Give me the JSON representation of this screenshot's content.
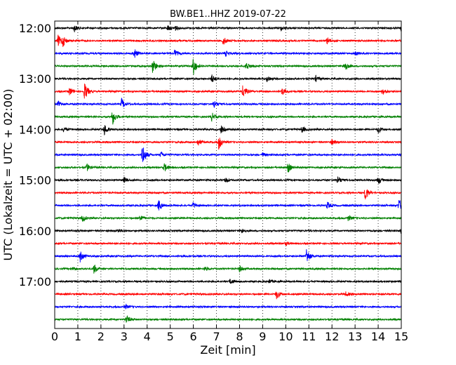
{
  "chart_data": {
    "type": "line",
    "title": "BW.BE1..HHZ 2019-07-22",
    "xlabel": "Zeit  [min]",
    "ylabel": "UTC (Lokalzeit = UTC + 02:00)",
    "xlim": [
      0,
      15
    ],
    "x_ticks": [
      "0",
      "1",
      "2",
      "3",
      "4",
      "5",
      "6",
      "7",
      "8",
      "9",
      "10",
      "11",
      "12",
      "13",
      "14",
      "15"
    ],
    "y_ticks": [
      "12:00",
      "13:00",
      "14:00",
      "15:00",
      "16:00",
      "17:00"
    ],
    "grid": "vertical dotted",
    "trace_colors": [
      "#000000",
      "#ff0000",
      "#0000ff",
      "#008000"
    ],
    "traces": [
      {
        "start": "12:00",
        "events": [
          [
            0.85,
            5
          ],
          [
            4.9,
            4
          ],
          [
            5.2,
            4
          ],
          [
            9.8,
            3
          ],
          [
            15,
            5
          ]
        ]
      },
      {
        "start": "12:15",
        "events": [
          [
            0.15,
            8
          ],
          [
            0.35,
            8
          ],
          [
            7.3,
            6
          ],
          [
            11.8,
            5
          ]
        ]
      },
      {
        "start": "12:30",
        "events": [
          [
            3.45,
            7
          ],
          [
            5.2,
            5
          ],
          [
            7.4,
            4
          ],
          [
            13,
            3
          ]
        ]
      },
      {
        "start": "12:45",
        "events": [
          [
            4.25,
            12
          ],
          [
            6.0,
            13
          ],
          [
            8.3,
            6
          ],
          [
            12.55,
            8
          ]
        ]
      },
      {
        "start": "13:00",
        "events": [
          [
            6.8,
            6
          ],
          [
            9.2,
            5
          ],
          [
            11.3,
            4
          ]
        ]
      },
      {
        "start": "13:15",
        "events": [
          [
            0.65,
            6
          ],
          [
            1.3,
            13
          ],
          [
            8.15,
            10
          ],
          [
            9.85,
            5
          ],
          [
            14.2,
            6
          ]
        ]
      },
      {
        "start": "13:30",
        "events": [
          [
            0.15,
            6
          ],
          [
            2.9,
            8
          ],
          [
            6.9,
            6
          ]
        ]
      },
      {
        "start": "13:45",
        "events": [
          [
            2.5,
            12
          ],
          [
            6.8,
            6
          ]
        ]
      },
      {
        "start": "14:00",
        "events": [
          [
            0.4,
            4
          ],
          [
            2.15,
            8
          ],
          [
            7.2,
            5
          ],
          [
            10.7,
            5
          ],
          [
            14.0,
            5
          ]
        ]
      },
      {
        "start": "14:15",
        "events": [
          [
            6.2,
            5
          ],
          [
            7.1,
            11
          ],
          [
            12.0,
            4
          ]
        ]
      },
      {
        "start": "14:30",
        "events": [
          [
            3.8,
            17
          ],
          [
            4.6,
            4
          ],
          [
            9.0,
            3
          ]
        ]
      },
      {
        "start": "14:45",
        "events": [
          [
            1.4,
            5
          ],
          [
            4.75,
            6
          ],
          [
            10.1,
            7
          ]
        ]
      },
      {
        "start": "15:00",
        "events": [
          [
            3.0,
            4
          ],
          [
            7.4,
            4
          ],
          [
            12.25,
            6
          ],
          [
            14.0,
            6
          ]
        ]
      },
      {
        "start": "15:15",
        "events": [
          [
            13.45,
            11
          ]
        ]
      },
      {
        "start": "15:30",
        "events": [
          [
            4.5,
            8
          ],
          [
            6.0,
            4
          ],
          [
            11.8,
            5
          ],
          [
            14.9,
            9
          ]
        ]
      },
      {
        "start": "15:45",
        "events": [
          [
            1.2,
            5
          ],
          [
            3.7,
            5
          ],
          [
            12.7,
            4
          ]
        ]
      },
      {
        "start": "16:00",
        "events": [
          [
            2.75,
            3
          ],
          [
            8.1,
            3
          ],
          [
            15,
            4
          ]
        ]
      },
      {
        "start": "16:15",
        "events": [
          [
            10.0,
            2
          ]
        ]
      },
      {
        "start": "16:30",
        "events": [
          [
            1.1,
            8
          ],
          [
            10.9,
            12
          ]
        ]
      },
      {
        "start": "16:45",
        "events": [
          [
            0.8,
            3
          ],
          [
            1.7,
            7
          ],
          [
            6.5,
            3
          ],
          [
            8.0,
            5
          ]
        ]
      },
      {
        "start": "17:00",
        "events": [
          [
            7.6,
            4
          ],
          [
            9.3,
            3
          ]
        ]
      },
      {
        "start": "17:15",
        "events": [
          [
            9.6,
            7
          ],
          [
            12.6,
            3
          ]
        ]
      },
      {
        "start": "17:30",
        "events": [
          [
            3.05,
            3
          ]
        ]
      },
      {
        "start": "17:45",
        "events": [
          [
            3.1,
            6
          ]
        ]
      }
    ]
  }
}
